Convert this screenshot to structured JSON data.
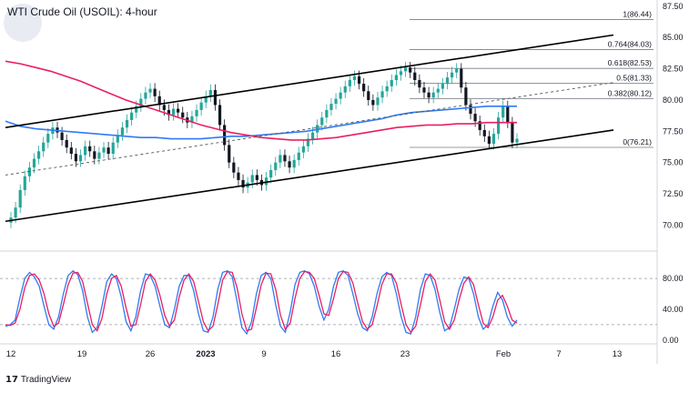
{
  "header": {
    "title": "WTI Crude Oil (USOIL): 4-hour"
  },
  "footer": {
    "brand": "TradingView",
    "brand_icon": "tradingview-logo-icon"
  },
  "colors": {
    "up": "#26a69a",
    "down": "#131722",
    "ma_fast": "#2f7bf5",
    "ma_slow": "#e91e63",
    "stoch_k": "#2f7bf5",
    "stoch_d": "#e91e63",
    "channel": "#000000"
  },
  "chart_data": [
    {
      "type": "candlestick",
      "title": "WTI Crude Oil (USOIL): 4-hour",
      "x_ticks": [
        "12",
        "19",
        "26",
        "2023",
        "9",
        "16",
        "23",
        "Feb",
        "7",
        "13"
      ],
      "y_ticks": [
        "70.00",
        "72.50",
        "75.00",
        "77.50",
        "80.00",
        "82.50",
        "85.00",
        "87.50"
      ],
      "ylim": [
        68.5,
        88
      ],
      "fibonacci": [
        {
          "label": "1(86.44)",
          "value": 86.44
        },
        {
          "label": "0.764(84.03)",
          "value": 84.03
        },
        {
          "label": "0.618(82.53)",
          "value": 82.53
        },
        {
          "label": "0.5(81.33)",
          "value": 81.33
        },
        {
          "label": "0.382(80.12)",
          "value": 80.12
        },
        {
          "label": "0(76.21)",
          "value": 76.21
        }
      ],
      "closes": [
        70.6,
        71.4,
        72.8,
        73.9,
        74.6,
        75.3,
        75.9,
        76.6,
        77.3,
        77.8,
        77.4,
        76.8,
        76.2,
        75.7,
        75.1,
        75.6,
        76.3,
        75.9,
        75.3,
        75.8,
        76.2,
        75.7,
        76.6,
        77.2,
        77.8,
        78.4,
        79.0,
        79.5,
        80.1,
        80.6,
        80.9,
        80.3,
        79.6,
        79.2,
        78.8,
        79.3,
        79.0,
        78.6,
        78.2,
        78.7,
        79.2,
        79.8,
        80.3,
        80.8,
        79.6,
        78.0,
        76.4,
        75.0,
        74.2,
        73.6,
        73.0,
        73.4,
        74.0,
        73.6,
        73.2,
        73.8,
        74.4,
        75.0,
        75.6,
        75.1,
        74.6,
        75.2,
        75.8,
        76.3,
        76.9,
        77.4,
        78.0,
        78.6,
        79.2,
        79.7,
        80.1,
        80.6,
        81.1,
        81.6,
        81.9,
        81.3,
        80.7,
        80.0,
        79.6,
        80.2,
        80.7,
        81.1,
        81.6,
        82.0,
        82.3,
        82.6,
        82.2,
        81.6,
        81.0,
        80.6,
        80.2,
        80.6,
        80.9,
        81.3,
        81.8,
        82.2,
        82.5,
        81.0,
        79.6,
        78.9,
        78.3,
        77.6,
        77.1,
        76.5,
        77.3,
        78.6,
        79.5,
        78.2,
        76.6,
        76.9
      ],
      "series": [
        {
          "name": "",
          "values": [
            78.3,
            77.9,
            77.7,
            77.6,
            77.5,
            77.4,
            77.3,
            77.2,
            77.1,
            77.0,
            77.0,
            76.9,
            76.9,
            76.9,
            77.0,
            77.1,
            77.1,
            77.2,
            77.3,
            77.4,
            77.5,
            77.7,
            77.9,
            78.1,
            78.3,
            78.5,
            78.8,
            79.0,
            79.1,
            79.2,
            79.3,
            79.4,
            79.5,
            79.5,
            79.5
          ]
        },
        {
          "name": "",
          "values": [
            83.1,
            82.9,
            82.6,
            82.3,
            81.9,
            81.5,
            81.0,
            80.5,
            80.0,
            79.6,
            79.2,
            78.8,
            78.4,
            78.0,
            77.7,
            77.4,
            77.2,
            77.0,
            76.9,
            76.8,
            76.8,
            76.9,
            77.0,
            77.2,
            77.4,
            77.6,
            77.8,
            77.9,
            78.0,
            78.0,
            78.1,
            78.1,
            78.2,
            78.2,
            78.2
          ]
        }
      ]
    },
    {
      "type": "line",
      "y_ticks": [
        "0.00",
        "40.00",
        "80.00"
      ],
      "ylim": [
        -5,
        105
      ],
      "reference_lines": [
        20,
        80
      ],
      "series": [
        {
          "name": "",
          "values": [
            18,
            20,
            26,
            55,
            80,
            88,
            82,
            70,
            44,
            20,
            14,
            30,
            60,
            84,
            90,
            85,
            64,
            30,
            10,
            16,
            44,
            76,
            86,
            80,
            56,
            24,
            12,
            30,
            64,
            86,
            84,
            70,
            44,
            20,
            16,
            40,
            70,
            84,
            84,
            64,
            34,
            12,
            10,
            30,
            66,
            88,
            90,
            82,
            50,
            16,
            8,
            24,
            60,
            84,
            88,
            80,
            46,
            18,
            10,
            36,
            72,
            88,
            90,
            86,
            70,
            44,
            26,
            40,
            70,
            88,
            90,
            84,
            60,
            34,
            16,
            12,
            30,
            60,
            82,
            88,
            84,
            60,
            30,
            10,
            8,
            30,
            66,
            86,
            84,
            66,
            36,
            12,
            16,
            40,
            66,
            82,
            80,
            60,
            30,
            14,
            20,
            44,
            62,
            52,
            30,
            18,
            26
          ]
        },
        {
          "name": "",
          "values": [
            20,
            19,
            22,
            40,
            68,
            84,
            86,
            78,
            60,
            34,
            18,
            22,
            46,
            72,
            87,
            88,
            76,
            48,
            20,
            12,
            28,
            60,
            80,
            84,
            70,
            42,
            18,
            20,
            46,
            76,
            86,
            78,
            58,
            32,
            18,
            26,
            56,
            78,
            86,
            76,
            50,
            24,
            12,
            18,
            46,
            78,
            89,
            88,
            68,
            34,
            12,
            14,
            42,
            72,
            87,
            86,
            66,
            32,
            14,
            22,
            54,
            80,
            89,
            88,
            80,
            58,
            34,
            32,
            54,
            80,
            89,
            88,
            74,
            48,
            24,
            14,
            20,
            44,
            72,
            86,
            86,
            74,
            46,
            20,
            10,
            18,
            46,
            76,
            86,
            78,
            52,
            24,
            14,
            26,
            52,
            74,
            82,
            72,
            46,
            22,
            16,
            30,
            52,
            58,
            44,
            26,
            22
          ]
        }
      ]
    }
  ]
}
